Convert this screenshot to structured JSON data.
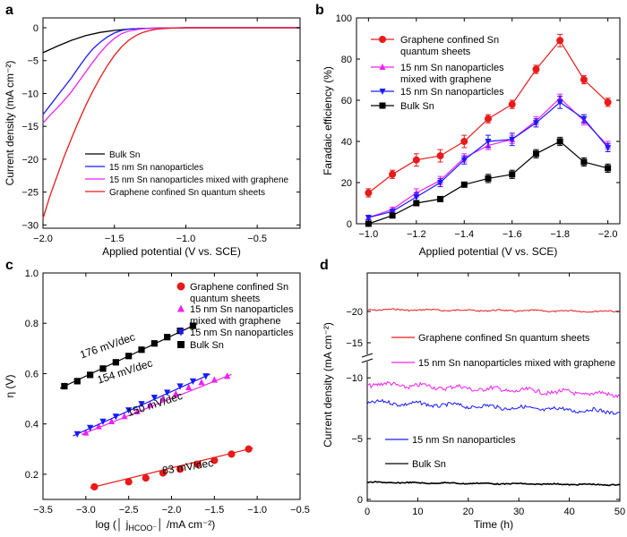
{
  "chart_data": [
    {
      "panel": "a",
      "type": "line",
      "xlabel": "Applied potential (V vs. SCE)",
      "ylabel": "Current density (mA cm⁻²)",
      "xlim": [
        -2.0,
        -0.2
      ],
      "ylim": [
        -30.5,
        1.5
      ],
      "xticks": [
        -2.0,
        -1.5,
        -1.0,
        -0.5
      ],
      "xtick_labels": [
        "−2.0",
        "−1.5",
        "−1.0",
        "−0.5"
      ],
      "yticks": [
        0,
        -5,
        -10,
        -15,
        -20,
        -25,
        -30
      ],
      "ytick_labels": [
        "0",
        "−5",
        "−10",
        "−15",
        "−20",
        "−25",
        "−30"
      ],
      "legend_position": "bottom-center",
      "series": [
        {
          "name": "Bulk Sn",
          "color": "#000000",
          "x": [
            -2.0,
            -1.9,
            -1.8,
            -1.7,
            -1.6,
            -1.5,
            -1.4,
            -1.3,
            -1.2,
            -1.0,
            -0.8,
            -0.5,
            -0.2
          ],
          "y": [
            -3.8,
            -2.8,
            -1.9,
            -1.2,
            -0.7,
            -0.4,
            -0.2,
            -0.1,
            -0.05,
            0,
            0,
            0,
            0
          ]
        },
        {
          "name": "15 nm Sn nanoparticles",
          "color": "#1a1aff",
          "x": [
            -2.0,
            -1.95,
            -1.9,
            -1.85,
            -1.8,
            -1.75,
            -1.7,
            -1.65,
            -1.6,
            -1.55,
            -1.5,
            -1.45,
            -1.4,
            -1.3,
            -1.2,
            -1.0,
            -0.8,
            -0.5,
            -0.2
          ],
          "y": [
            -13.2,
            -11.8,
            -10.4,
            -9.0,
            -7.6,
            -6.0,
            -4.5,
            -3.2,
            -2.2,
            -1.4,
            -0.8,
            -0.4,
            -0.2,
            -0.1,
            -0.05,
            0,
            0,
            0,
            0
          ]
        },
        {
          "name": "15 nm Sn nanoparticles mixed with graphene",
          "color": "#ee22ee",
          "x": [
            -2.0,
            -1.95,
            -1.9,
            -1.85,
            -1.8,
            -1.75,
            -1.7,
            -1.65,
            -1.6,
            -1.55,
            -1.5,
            -1.45,
            -1.4,
            -1.35,
            -1.3,
            -1.2,
            -1.0,
            -0.8,
            -0.5,
            -0.2
          ],
          "y": [
            -14.5,
            -13.3,
            -12.2,
            -11.0,
            -9.7,
            -8.2,
            -6.7,
            -5.2,
            -3.8,
            -2.6,
            -1.6,
            -0.9,
            -0.5,
            -0.3,
            -0.15,
            -0.05,
            0,
            0,
            0,
            0
          ]
        },
        {
          "name": "Graphene confined Sn quantum sheets",
          "color": "#e81a1a",
          "x": [
            -2.0,
            -1.95,
            -1.9,
            -1.85,
            -1.8,
            -1.75,
            -1.7,
            -1.65,
            -1.6,
            -1.55,
            -1.5,
            -1.45,
            -1.4,
            -1.35,
            -1.3,
            -1.25,
            -1.2,
            -1.1,
            -1.0,
            -0.8,
            -0.5,
            -0.2
          ],
          "y": [
            -29.0,
            -25.5,
            -22.5,
            -19.5,
            -16.8,
            -14.2,
            -11.8,
            -9.6,
            -7.6,
            -5.8,
            -4.2,
            -2.9,
            -1.9,
            -1.2,
            -0.7,
            -0.4,
            -0.2,
            -0.05,
            0,
            0,
            0,
            0
          ]
        }
      ]
    },
    {
      "panel": "b",
      "type": "line",
      "xlabel": "Applied potential (V vs. SCE)",
      "ylabel": "Faradaic efficiency (%)",
      "xlim": [
        -0.95,
        -2.05
      ],
      "ylim": [
        0,
        100
      ],
      "xticks": [
        -1.0,
        -1.2,
        -1.4,
        -1.6,
        -1.8,
        -2.0
      ],
      "xtick_labels": [
        "−1.0",
        "−1.2",
        "−1.4",
        "−1.6",
        "−1.8",
        "−2.0"
      ],
      "yticks": [
        0,
        20,
        40,
        60,
        80,
        100
      ],
      "ytick_labels": [
        "0",
        "20",
        "40",
        "60",
        "80",
        "100"
      ],
      "legend_position": "top-left",
      "x": [
        -1.0,
        -1.1,
        -1.2,
        -1.3,
        -1.4,
        -1.5,
        -1.6,
        -1.7,
        -1.8,
        -1.9,
        -2.0
      ],
      "series": [
        {
          "name": "Graphene confined Sn quantum sheets",
          "color": "#e81a1a",
          "marker": "circle",
          "values": [
            15,
            24,
            31,
            33,
            40,
            51,
            58,
            75,
            89,
            70,
            59
          ],
          "errors": [
            2,
            2,
            3,
            3,
            3,
            2,
            2,
            2,
            3,
            2,
            2
          ]
        },
        {
          "name": "15 nm Sn nanoparticles mixed with graphene",
          "color": "#ee22ee",
          "marker": "triangle-up",
          "values": [
            3,
            7,
            15,
            21,
            32,
            38,
            41,
            50,
            61,
            50,
            38
          ],
          "errors": [
            1,
            1,
            2,
            2,
            2,
            2,
            2,
            2,
            2,
            2,
            2
          ]
        },
        {
          "name": "15 nm Sn nanoparticles",
          "color": "#1a1aff",
          "marker": "triangle-down",
          "values": [
            3,
            6,
            13,
            20,
            31,
            40,
            41,
            49,
            59,
            51,
            37
          ],
          "errors": [
            1,
            1,
            2,
            2,
            2,
            3,
            3,
            2,
            3,
            2,
            2
          ]
        },
        {
          "name": "Bulk Sn",
          "color": "#000000",
          "marker": "square",
          "values": [
            0,
            4,
            10,
            12,
            19,
            22,
            24,
            34,
            40,
            30,
            27
          ],
          "errors": [
            1,
            1,
            1,
            1,
            1,
            2,
            2,
            2,
            2,
            2,
            2
          ]
        }
      ]
    },
    {
      "panel": "c",
      "type": "scatter",
      "xlabel": "log (│ j",
      "xlabel_sub": "HCOO⁻",
      "xlabel_tail": "│ /mA cm⁻²)",
      "ylabel": "η (V)",
      "xlim": [
        -3.5,
        -0.5
      ],
      "ylim": [
        0.1,
        1.0
      ],
      "xticks": [
        -3.5,
        -3.0,
        -2.5,
        -2.0,
        -1.5,
        -1.0,
        -0.5
      ],
      "xtick_labels": [
        "−3.5",
        "−3.0",
        "−2.5",
        "−2.0",
        "−1.5",
        "−1.0",
        "−0.5"
      ],
      "yticks": [
        0.2,
        0.4,
        0.6,
        0.8,
        1.0
      ],
      "ytick_labels": [
        "0.2",
        "0.4",
        "0.6",
        "0.8",
        "1.0"
      ],
      "legend_position": "top-right",
      "series": [
        {
          "name": "Graphene confined Sn quantum sheets",
          "color": "#e81a1a",
          "marker": "circle",
          "slope_label": "83 mV/dec",
          "x": [
            -2.9,
            -2.5,
            -2.3,
            -2.1,
            -1.9,
            -1.7,
            -1.5,
            -1.3,
            -1.1
          ],
          "y": [
            0.15,
            0.17,
            0.185,
            0.205,
            0.22,
            0.24,
            0.255,
            0.28,
            0.3
          ]
        },
        {
          "name": "15 nm Sn nanoparticles mixed with graphene",
          "color": "#ee22ee",
          "marker": "triangle-up",
          "slope_label": "150 mV/dec",
          "x": [
            -3.0,
            -2.85,
            -2.7,
            -2.55,
            -2.4,
            -2.25,
            -2.1,
            -1.95,
            -1.8,
            -1.65,
            -1.5,
            -1.35
          ],
          "y": [
            0.365,
            0.39,
            0.41,
            0.43,
            0.45,
            0.475,
            0.5,
            0.52,
            0.545,
            0.565,
            0.575,
            0.59
          ]
        },
        {
          "name": "15 nm Sn nanoparticles",
          "color": "#1a1aff",
          "marker": "triangle-down",
          "slope_label": "154 mV/dec",
          "x": [
            -3.1,
            -2.95,
            -2.8,
            -2.65,
            -2.5,
            -2.35,
            -2.2,
            -2.05,
            -1.9,
            -1.75,
            -1.6
          ],
          "y": [
            0.36,
            0.385,
            0.41,
            0.43,
            0.455,
            0.48,
            0.505,
            0.525,
            0.55,
            0.57,
            0.59
          ]
        },
        {
          "name": "Bulk Sn",
          "color": "#000000",
          "marker": "square",
          "slope_label": "176 mV/dec",
          "x": [
            -3.25,
            -3.1,
            -2.95,
            -2.8,
            -2.65,
            -2.5,
            -2.35,
            -2.2,
            -2.05,
            -1.9,
            -1.75
          ],
          "y": [
            0.55,
            0.57,
            0.595,
            0.62,
            0.645,
            0.67,
            0.695,
            0.72,
            0.745,
            0.77,
            0.79
          ]
        }
      ]
    },
    {
      "panel": "d",
      "type": "line",
      "xlabel": "Time (h)",
      "ylabel": "Current density (mA cm⁻²)",
      "xlim": [
        0,
        50
      ],
      "broken_y_axis": true,
      "yticks": [
        0,
        -5,
        -10,
        -15,
        -20
      ],
      "ytick_labels": [
        "0",
        "−5",
        "−10",
        "−15",
        "−20"
      ],
      "xticks": [
        0,
        10,
        20,
        30,
        40,
        50
      ],
      "xtick_labels": [
        "0",
        "10",
        "20",
        "30",
        "40",
        "50"
      ],
      "legend_position": "inline labels",
      "series": [
        {
          "name": "Graphene confined Sn quantum sheets",
          "color": "#e81a1a",
          "start": -20.3,
          "end": -20.0
        },
        {
          "name": "15 nm Sn nanoparticles mixed with graphene",
          "color": "#ee22ee",
          "start": -9.5,
          "end": -8.6
        },
        {
          "name": "15 nm Sn nanoparticles",
          "color": "#1a1aff",
          "start": -8.0,
          "end": -7.2
        },
        {
          "name": "Bulk Sn",
          "color": "#000000",
          "start": -1.4,
          "end": -1.2
        }
      ]
    }
  ],
  "panel_letters": [
    "a",
    "b",
    "c",
    "d"
  ],
  "quantum_line1": "Graphene confined Sn",
  "quantum_line2": "quantum sheets",
  "mixed_line1": "15 nm Sn nanoparticles",
  "mixed_line2": "mixed with graphene"
}
